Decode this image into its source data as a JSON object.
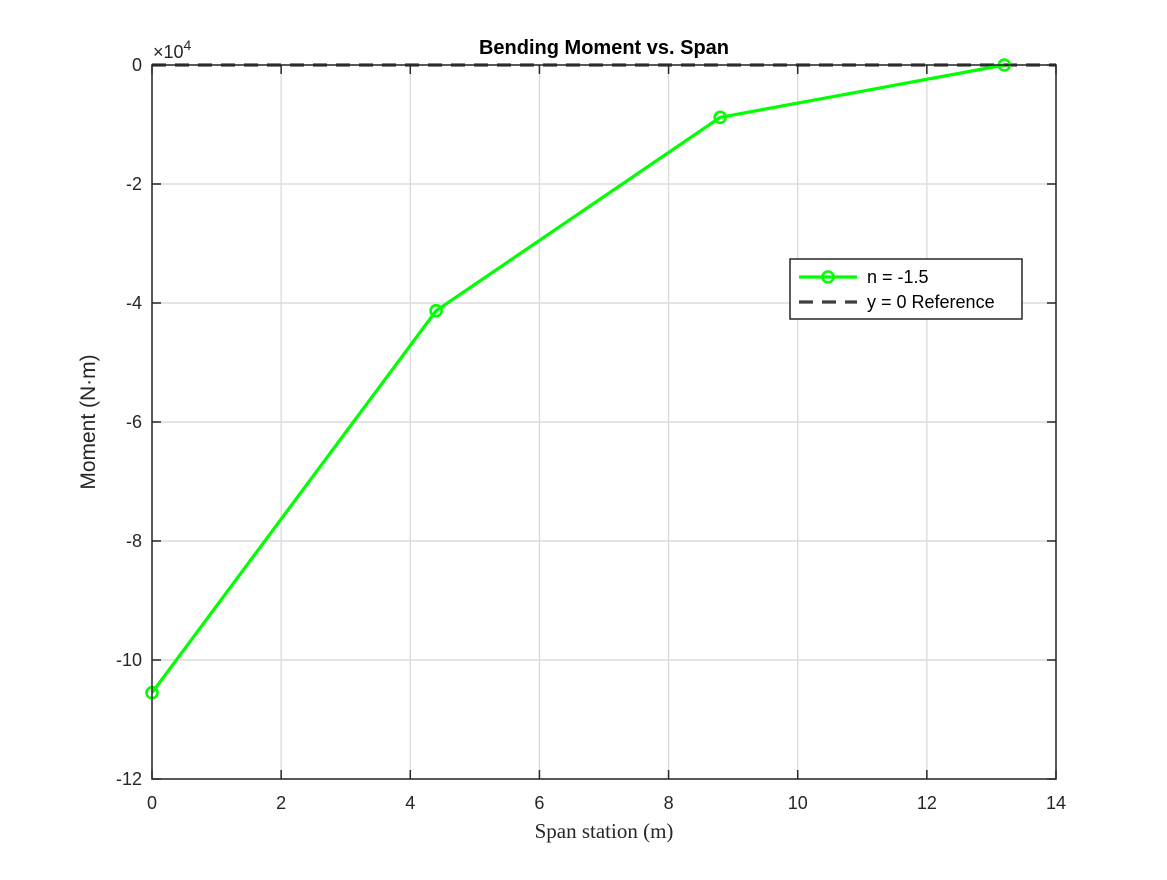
{
  "chart_data": {
    "type": "line",
    "title": "Bending Moment vs. Span",
    "xlabel": "Span station (m)",
    "ylabel": "Moment (N·m)",
    "xlim": [
      0,
      14
    ],
    "ylim": [
      -12,
      0
    ],
    "y_scale_factor": "×10",
    "y_scale_exponent": "4",
    "grid": true,
    "x_ticks": [
      0,
      2,
      4,
      6,
      8,
      10,
      12,
      14
    ],
    "y_ticks": [
      -12,
      -10,
      -8,
      -6,
      -4,
      -2,
      0
    ],
    "x_tick_labels": [
      "0",
      "2",
      "4",
      "6",
      "8",
      "10",
      "12",
      "14"
    ],
    "y_tick_labels": [
      "-12",
      "-10",
      "-8",
      "-6",
      "-4",
      "-2",
      "0"
    ],
    "legend_position": "upper-right (inside)",
    "series": [
      {
        "name": "n = -1.5",
        "color": "#00ff00",
        "marker": "circle",
        "line_style": "solid",
        "x": [
          0,
          4.4,
          8.8,
          13.2
        ],
        "y": [
          -10.55,
          -4.13,
          -0.88,
          0
        ]
      },
      {
        "name": "y = 0 Reference",
        "color": "#3f3f3f",
        "marker": "none",
        "line_style": "dashed",
        "x": [
          0,
          14
        ],
        "y": [
          0,
          0
        ]
      }
    ]
  }
}
